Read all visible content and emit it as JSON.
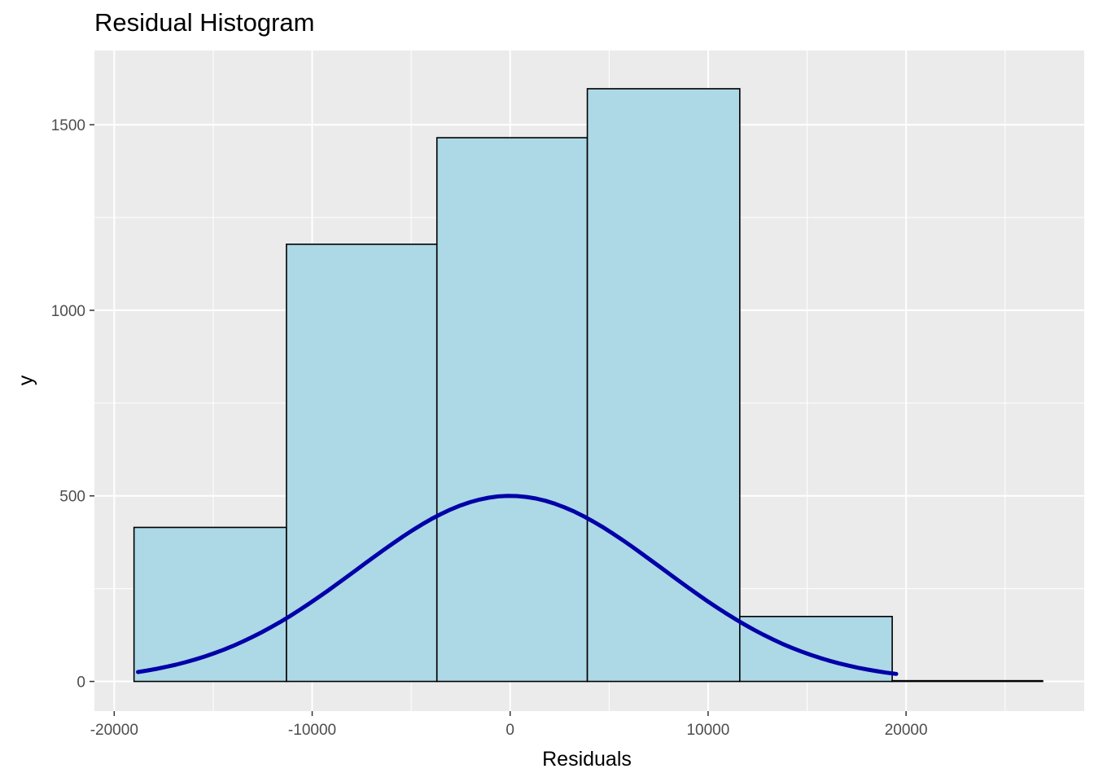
{
  "chart_data": {
    "type": "bar",
    "title": "Residual Histogram",
    "xlabel": "Residuals",
    "ylabel": "y",
    "xlim": [
      -21000,
      29000
    ],
    "ylim": [
      -80,
      1700
    ],
    "x_ticks": [
      -20000,
      -10000,
      0,
      10000,
      20000
    ],
    "y_ticks": [
      0,
      500,
      1000,
      1500
    ],
    "grid": true,
    "bins": [
      {
        "x0": -19000,
        "x1": -11300,
        "count": 415
      },
      {
        "x0": -11300,
        "x1": -3700,
        "count": 1178
      },
      {
        "x0": -3700,
        "x1": 3900,
        "count": 1465
      },
      {
        "x0": 3900,
        "x1": 11600,
        "count": 1597
      },
      {
        "x0": 11600,
        "x1": 19300,
        "count": 175
      },
      {
        "x0": 19300,
        "x1": 26900,
        "count": 2
      }
    ],
    "normal_curve": {
      "mean": 0,
      "sd": 7700,
      "peak": 500,
      "x_from": -18800,
      "x_to": 19500
    },
    "colors": {
      "panel_bg": "#ebebeb",
      "grid": "#ffffff",
      "bar_fill": "#add8e6",
      "bar_stroke": "#000000",
      "curve": "#0000a8",
      "tick_text": "#4d4d4d",
      "tick_mark": "#333333"
    }
  }
}
